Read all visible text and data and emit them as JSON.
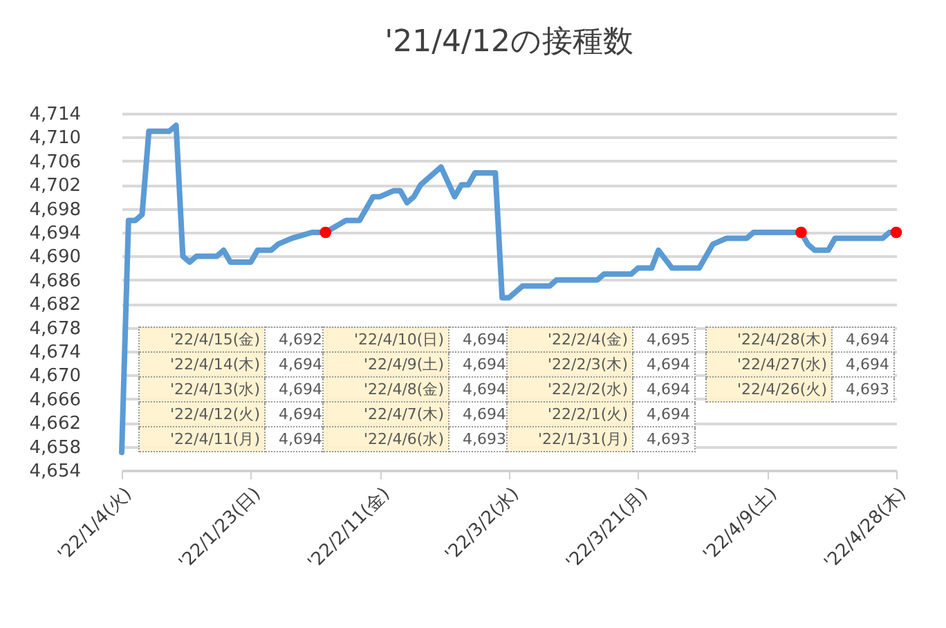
{
  "chart_data": {
    "type": "line",
    "title": "'21/4/12の接種数",
    "series": [
      {
        "type": "line",
        "color": "#5b9bd5",
        "x": [
          "2022-01-04",
          "2022-01-05",
          "2022-01-06",
          "2022-01-07",
          "2022-01-08",
          "2022-01-11",
          "2022-01-12",
          "2022-01-13",
          "2022-01-14",
          "2022-01-15",
          "2022-01-18",
          "2022-01-19",
          "2022-01-20",
          "2022-01-23",
          "2022-01-24",
          "2022-01-26",
          "2022-01-27",
          "2022-01-29",
          "2022-02-01",
          "2022-02-03",
          "2022-02-06",
          "2022-02-08",
          "2022-02-10",
          "2022-02-11",
          "2022-02-13",
          "2022-02-14",
          "2022-02-15",
          "2022-02-16",
          "2022-02-17",
          "2022-02-20",
          "2022-02-22",
          "2022-02-23",
          "2022-02-24",
          "2022-02-25",
          "2022-02-28",
          "2022-03-01",
          "2022-03-02",
          "2022-03-04",
          "2022-03-08",
          "2022-03-09",
          "2022-03-15",
          "2022-03-16",
          "2022-03-20",
          "2022-03-21",
          "2022-03-23",
          "2022-03-24",
          "2022-03-26",
          "2022-03-30",
          "2022-04-01",
          "2022-04-03",
          "2022-04-06",
          "2022-04-07",
          "2022-04-14",
          "2022-04-15",
          "2022-04-16",
          "2022-04-18",
          "2022-04-19",
          "2022-04-26",
          "2022-04-27",
          "2022-04-28"
        ],
        "values": [
          4657,
          4696,
          4696,
          4697,
          4711,
          4711,
          4712,
          4690,
          4689,
          4690,
          4690,
          4691,
          4689,
          4689,
          4691,
          4691,
          4692,
          4693,
          4694,
          4694,
          4696,
          4696,
          4700,
          4700,
          4701,
          4701,
          4699,
          4700,
          4702,
          4705,
          4700,
          4702,
          4702,
          4704,
          4704,
          4683,
          4683,
          4685,
          4685,
          4686,
          4686,
          4687,
          4687,
          4688,
          4688,
          4691,
          4688,
          4688,
          4692,
          4693,
          4693,
          4694,
          4694,
          4692,
          4691,
          4691,
          4693,
          4693,
          4694,
          4694
        ]
      },
      {
        "type": "scatter",
        "marker": "circle",
        "color": "#ff0000",
        "x": [
          "2022-02-03",
          "2022-04-14",
          "2022-04-28"
        ],
        "values": [
          4694,
          4694,
          4694
        ]
      }
    ],
    "xlim": [
      "2022-01-04",
      "2022-04-28"
    ],
    "xticks": [
      {
        "value": "2022-01-04",
        "label": "'22/1/4(火)"
      },
      {
        "value": "2022-01-23",
        "label": "'22/1/23(日)"
      },
      {
        "value": "2022-02-11",
        "label": "'22/2/11(金)"
      },
      {
        "value": "2022-03-02",
        "label": "'22/3/2(水)"
      },
      {
        "value": "2022-03-21",
        "label": "'22/3/21(月)"
      },
      {
        "value": "2022-04-09",
        "label": "'22/4/9(土)"
      },
      {
        "value": "2022-04-28",
        "label": "'22/4/28(木)"
      }
    ],
    "ylim": [
      4654,
      4714
    ],
    "yticks": [
      {
        "value": 4654,
        "label": "4,654"
      },
      {
        "value": 4658,
        "label": "4,658"
      },
      {
        "value": 4662,
        "label": "4,662"
      },
      {
        "value": 4666,
        "label": "4,666"
      },
      {
        "value": 4670,
        "label": "4,670"
      },
      {
        "value": 4674,
        "label": "4,674"
      },
      {
        "value": 4678,
        "label": "4,678"
      },
      {
        "value": 4682,
        "label": "4,682"
      },
      {
        "value": 4686,
        "label": "4,686"
      },
      {
        "value": 4690,
        "label": "4,690"
      },
      {
        "value": 4694,
        "label": "4,694"
      },
      {
        "value": 4698,
        "label": "4,698"
      },
      {
        "value": 4702,
        "label": "4,702"
      },
      {
        "value": 4706,
        "label": "4,706"
      },
      {
        "value": 4710,
        "label": "4,710"
      },
      {
        "value": 4714,
        "label": "4,714"
      }
    ],
    "grid": "y",
    "line_style": "solid",
    "annotations": [
      "'22/4/15(金)",
      "4,692",
      "'22/4/14(木)",
      "4,694",
      "'22/4/13(水)",
      "4,694",
      "'22/4/12(火)",
      "4,694",
      "'22/4/11(月)",
      "4,694",
      "'22/4/10(日)",
      "4,694",
      "'22/4/9(土)",
      "4,694",
      "'22/4/8(金)",
      "4,694",
      "'22/4/7(木)",
      "4,694",
      "'22/4/6(水)",
      "4,693",
      "'22/2/4(金)",
      "4,695",
      "'22/2/3(木)",
      "4,694",
      "'22/2/2(水)",
      "4,694",
      "'22/2/1(火)",
      "4,694",
      "'22/1/31(月)",
      "4,693",
      "'22/4/28(木)",
      "4,694",
      "'22/4/27(水)",
      "4,694",
      "'22/4/26(火)",
      "4,693"
    ]
  }
}
